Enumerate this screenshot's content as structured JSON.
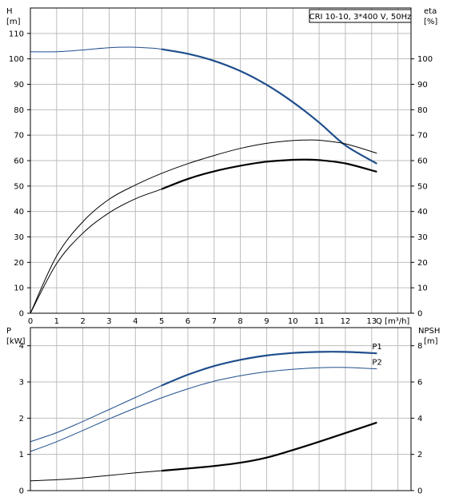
{
  "colors": {
    "blue_curve": "#1f4e8c",
    "black_curve": "#000000",
    "grid": "#bdbdbd"
  },
  "chart_data": [
    {
      "type": "line",
      "title": "CRI 10-10, 3*400 V, 50Hz",
      "xlabel": "Q [m³/h]",
      "x_ticks": [
        "0",
        "1",
        "2",
        "3",
        "4",
        "5",
        "6",
        "7",
        "8",
        "9",
        "10",
        "11",
        "12",
        "13"
      ],
      "xlim": [
        0,
        14.5
      ],
      "y_left": {
        "label_line1": "H",
        "label_line2": "[m]",
        "ylim": [
          0,
          120
        ],
        "ticks": [
          0,
          10,
          20,
          30,
          40,
          50,
          60,
          70,
          80,
          90,
          100,
          110
        ]
      },
      "y_right": {
        "label_line1": "eta",
        "label_line2": "[%]",
        "ylim": [
          0,
          120
        ],
        "ticks": [
          0,
          10,
          20,
          30,
          40,
          50,
          60,
          70,
          80,
          90,
          100
        ]
      },
      "grid": true,
      "series": [
        {
          "axis": "left",
          "color_key": "blue_curve",
          "thick_from": 5,
          "x": [
            0,
            1,
            2,
            3,
            3.8,
            4.5,
            5,
            6,
            7,
            8,
            9,
            10,
            11,
            12,
            13.2
          ],
          "values": [
            102.8,
            102.8,
            103.5,
            104.4,
            104.6,
            104.3,
            103.8,
            102,
            99.2,
            95.2,
            89.8,
            83,
            75,
            66,
            58.8
          ]
        },
        {
          "axis": "right",
          "color_key": "black_curve",
          "thick_from": null,
          "x": [
            0,
            1,
            2,
            3,
            4,
            5,
            6,
            7,
            8,
            9,
            10,
            10.5,
            11,
            12,
            13.2
          ],
          "values": [
            0,
            22.5,
            36,
            44.8,
            50.4,
            55,
            58.8,
            62,
            64.8,
            66.8,
            67.9,
            68.1,
            68,
            66.6,
            62.9
          ]
        },
        {
          "axis": "right",
          "color_key": "black_curve",
          "thick_from": 5,
          "x": [
            0,
            1,
            2,
            3,
            4,
            5,
            6,
            7,
            8,
            9,
            10,
            10.5,
            11,
            12,
            13.2
          ],
          "values": [
            0,
            19.5,
            31.5,
            39.5,
            45,
            48.8,
            52.8,
            55.8,
            58,
            59.6,
            60.3,
            60.4,
            60.2,
            58.9,
            55.6
          ]
        }
      ]
    },
    {
      "type": "line",
      "xlim": [
        0,
        14.5
      ],
      "x_ticks": [],
      "y_left": {
        "label_line1": "P",
        "label_line2": "[kW]",
        "ylim": [
          0,
          4.5
        ],
        "ticks": [
          0,
          1,
          2,
          3,
          4
        ]
      },
      "y_right": {
        "label_line1": "NPSH",
        "label_line2": "[m]",
        "ylim": [
          0,
          9
        ],
        "ticks": [
          0,
          2,
          4,
          6,
          8
        ]
      },
      "grid": true,
      "series": [
        {
          "name": "P1",
          "axis": "left",
          "color_key": "blue_curve",
          "thick_from": 5,
          "x": [
            0,
            1,
            2,
            3,
            4,
            5,
            6,
            7,
            8,
            9,
            10,
            11,
            12,
            13.2
          ],
          "values": [
            1.35,
            1.6,
            1.91,
            2.24,
            2.57,
            2.9,
            3.2,
            3.44,
            3.61,
            3.73,
            3.8,
            3.83,
            3.83,
            3.79
          ]
        },
        {
          "name": "P2",
          "axis": "left",
          "color_key": "blue_curve",
          "thick_from": null,
          "x": [
            0,
            1,
            2,
            3,
            4,
            5,
            6,
            7,
            8,
            9,
            10,
            11,
            12,
            13.2
          ],
          "values": [
            1.08,
            1.35,
            1.66,
            1.98,
            2.28,
            2.56,
            2.81,
            3.02,
            3.17,
            3.28,
            3.35,
            3.39,
            3.4,
            3.36
          ]
        },
        {
          "axis": "right",
          "color_key": "black_curve",
          "thick_from": 5,
          "x": [
            0,
            1,
            2,
            3,
            4,
            5,
            6,
            7,
            8,
            9,
            10,
            11,
            12,
            13.2
          ],
          "values": [
            0.54,
            0.6,
            0.7,
            0.84,
            0.98,
            1.1,
            1.22,
            1.36,
            1.54,
            1.82,
            2.24,
            2.7,
            3.18,
            3.76
          ]
        }
      ]
    }
  ]
}
